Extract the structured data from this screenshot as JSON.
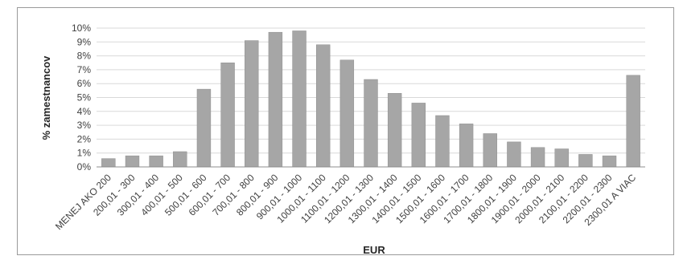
{
  "chart_data": {
    "type": "bar",
    "title": "",
    "xlabel": "EUR",
    "ylabel": "% zamestnancov",
    "ylim": [
      0,
      10
    ],
    "y_ticks": [
      "0%",
      "1%",
      "2%",
      "3%",
      "4%",
      "5%",
      "6%",
      "7%",
      "8%",
      "9%",
      "10%"
    ],
    "grid": true,
    "legend": "none",
    "bar_color": "#a6a6a6",
    "categories": [
      "MENEJ AKO 200",
      "200,01 - 300",
      "300,01 - 400",
      "400,01 - 500",
      "500,01 - 600",
      "600,01 - 700",
      "700,01 - 800",
      "800,01 - 900",
      "900,01 - 1000",
      "1000,01 - 1100",
      "1100,01 - 1200",
      "1200,01 - 1300",
      "1300,01 - 1400",
      "1400,01 - 1500",
      "1500,01 - 1600",
      "1600,01 - 1700",
      "1700,01 - 1800",
      "1800,01 - 1900",
      "1900,01 - 2000",
      "2000,01 - 2100",
      "2100,01 - 2200",
      "2200,01 - 2300",
      "2300,01 A VIAC"
    ],
    "values": [
      0.6,
      0.8,
      0.8,
      1.1,
      5.6,
      7.5,
      9.1,
      9.7,
      9.8,
      8.8,
      7.7,
      6.3,
      5.3,
      4.6,
      3.7,
      3.1,
      2.4,
      1.8,
      1.4,
      1.3,
      0.9,
      0.8,
      6.6
    ]
  }
}
